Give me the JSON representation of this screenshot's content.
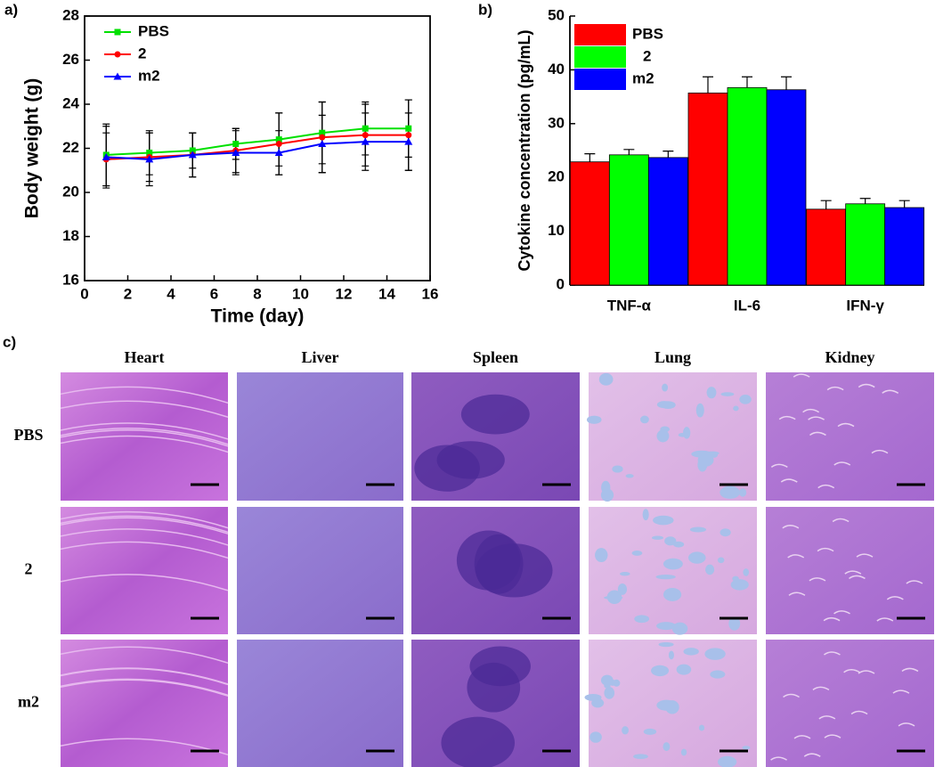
{
  "chart_data": [
    {
      "type": "line",
      "label": "a)",
      "x_label": "Time (day)",
      "y_label": "Body weight (g)",
      "x": [
        1,
        3,
        5,
        7,
        9,
        11,
        13,
        15
      ],
      "series": [
        {
          "name": "PBS",
          "color": "#00e000",
          "marker": "square",
          "values": [
            21.7,
            21.8,
            21.9,
            22.2,
            22.4,
            22.7,
            22.9,
            22.9
          ],
          "errors": [
            1.4,
            1.0,
            0.8,
            0.7,
            1.2,
            1.4,
            1.2,
            1.3
          ]
        },
        {
          "name": "2",
          "color": "#ff0000",
          "marker": "circle",
          "values": [
            21.5,
            21.6,
            21.7,
            21.9,
            22.2,
            22.5,
            22.6,
            22.6
          ],
          "errors": [
            1.2,
            1.1,
            1.0,
            1.0,
            1.4,
            1.6,
            1.4,
            1.6
          ]
        },
        {
          "name": "m2",
          "color": "#0000ff",
          "marker": "triangle",
          "values": [
            21.6,
            21.5,
            21.7,
            21.8,
            21.8,
            22.2,
            22.3,
            22.3
          ],
          "errors": [
            1.4,
            1.2,
            1.0,
            1.0,
            1.0,
            1.3,
            1.3,
            1.3
          ]
        }
      ],
      "xlim": [
        0,
        16
      ],
      "xticks": [
        0,
        2,
        4,
        6,
        8,
        10,
        12,
        14,
        16
      ],
      "ylim": [
        16,
        28
      ],
      "yticks": [
        16,
        18,
        20,
        22,
        24,
        26,
        28
      ],
      "legend": "top-left"
    },
    {
      "type": "bar",
      "label": "b)",
      "y_label": "Cytokine concentration (pg/mL)",
      "categories": [
        "TNF-α",
        "IL-6",
        "IFN-γ"
      ],
      "series": [
        {
          "name": "PBS",
          "color": "#ff0000",
          "values": [
            22.9,
            35.7,
            14.1
          ],
          "errors": [
            1.5,
            3.0,
            1.6
          ]
        },
        {
          "name": "2",
          "color": "#00ff00",
          "values": [
            24.2,
            36.7,
            15.1
          ],
          "errors": [
            1.0,
            2.0,
            1.0
          ]
        },
        {
          "name": "m2",
          "color": "#0000ff",
          "values": [
            23.7,
            36.3,
            14.4
          ],
          "errors": [
            1.2,
            2.4,
            1.3
          ]
        }
      ],
      "ylim": [
        0,
        50
      ],
      "yticks": [
        0,
        10,
        20,
        30,
        40,
        50
      ],
      "legend": "top-left"
    }
  ],
  "histology": {
    "label": "c)",
    "columns": [
      "Heart",
      "Liver",
      "Spleen",
      "Lung",
      "Kidney"
    ],
    "rows": [
      "PBS",
      "2",
      "m2"
    ]
  }
}
